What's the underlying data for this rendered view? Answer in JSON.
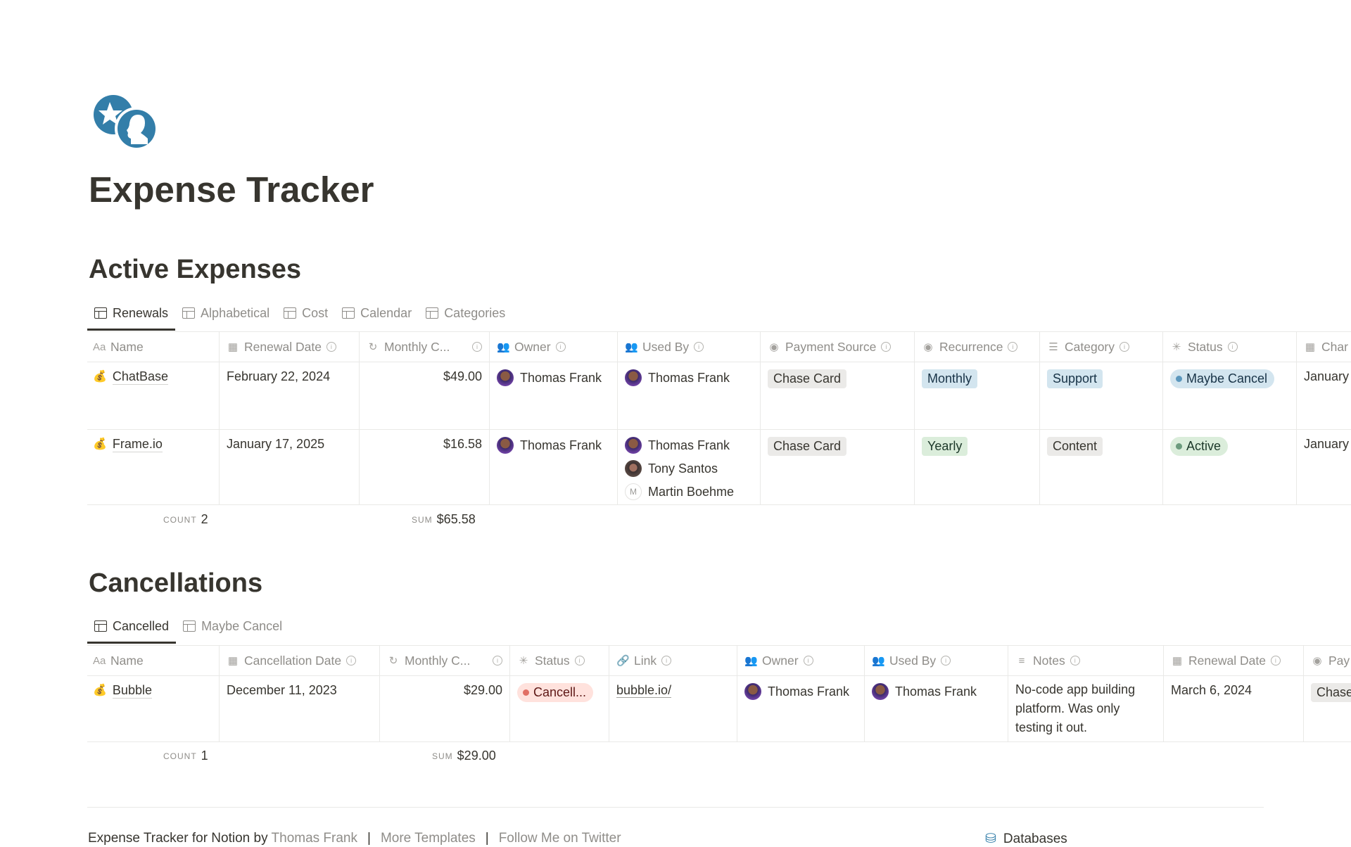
{
  "page": {
    "title": "Expense Tracker",
    "icon": "coins-icon",
    "accent": "#337ea9"
  },
  "active": {
    "heading": "Active Expenses",
    "tabs": [
      {
        "label": "Renewals",
        "active": true
      },
      {
        "label": "Alphabetical"
      },
      {
        "label": "Cost"
      },
      {
        "label": "Calendar"
      },
      {
        "label": "Categories"
      }
    ],
    "columns": [
      "Name",
      "Renewal Date",
      "Monthly C...",
      "Owner",
      "Used By",
      "Payment Source",
      "Recurrence",
      "Category",
      "Status",
      "Char"
    ],
    "rows": [
      {
        "name": "ChatBase",
        "renewal": "February 22, 2024",
        "cost": "$49.00",
        "owner": "Thomas Frank",
        "used_by": [
          "Thomas Frank"
        ],
        "payment": "Chase Card",
        "recurrence": "Monthly",
        "category": "Support",
        "status": "Maybe Cancel",
        "charge": "January"
      },
      {
        "name": "Frame.io",
        "renewal": "January 17, 2025",
        "cost": "$16.58",
        "owner": "Thomas Frank",
        "used_by": [
          "Thomas Frank",
          "Tony Santos",
          "Martin Boehme"
        ],
        "payment": "Chase Card",
        "recurrence": "Yearly",
        "category": "Content",
        "status": "Active",
        "charge": "January"
      }
    ],
    "footer": {
      "count_label": "COUNT",
      "count": "2",
      "sum_label": "SUM",
      "sum": "$65.58"
    }
  },
  "cancellations": {
    "heading": "Cancellations",
    "tabs": [
      {
        "label": "Cancelled",
        "active": true
      },
      {
        "label": "Maybe Cancel"
      }
    ],
    "columns": [
      "Name",
      "Cancellation Date",
      "Monthly C...",
      "Status",
      "Link",
      "Owner",
      "Used By",
      "Notes",
      "Renewal Date",
      "Pay"
    ],
    "rows": [
      {
        "name": "Bubble",
        "cancel_date": "December 11, 2023",
        "cost": "$29.00",
        "status": "Cancell...",
        "link": "bubble.io/",
        "owner": "Thomas Frank",
        "used_by": "Thomas Frank",
        "notes": [
          "No-code app building",
          "platform. Was only",
          "testing it out."
        ],
        "renewal": "March 6, 2024",
        "payment": "Chase"
      }
    ],
    "footer": {
      "count_label": "COUNT",
      "count": "1",
      "sum_label": "SUM",
      "sum": "$29.00"
    }
  },
  "footer": {
    "credit": "Expense Tracker for Notion by",
    "author": "Thomas Frank",
    "more": "More Templates",
    "twitter": "Follow Me on Twitter",
    "databases": "Databases"
  }
}
